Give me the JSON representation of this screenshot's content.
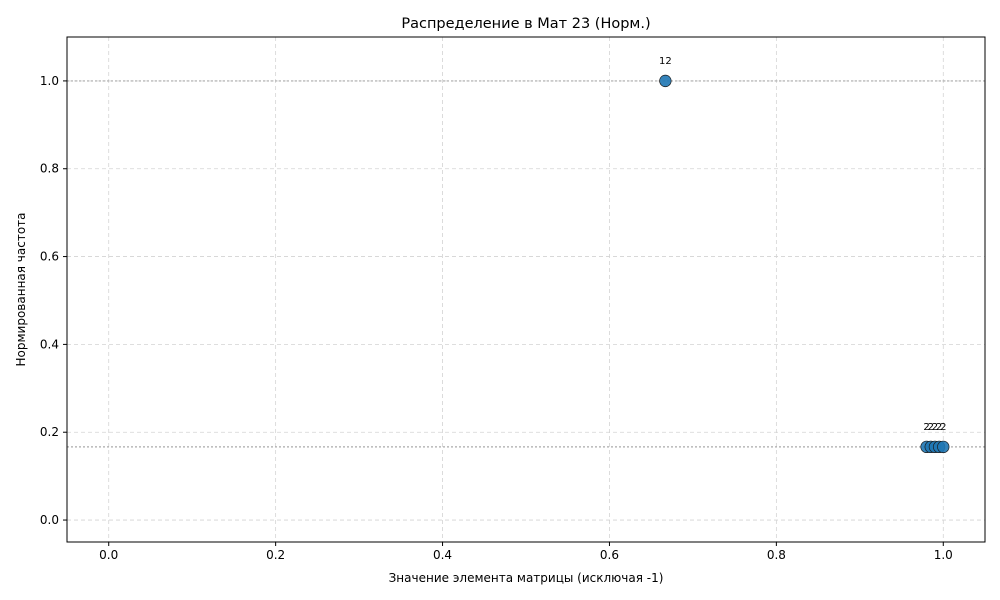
{
  "chart_data": {
    "type": "scatter",
    "title": "Распределение в Мат 23 (Норм.)",
    "xlabel": "Значение элемента матрицы (исключая -1)",
    "ylabel": "Нормированная частота",
    "xlim": [
      -0.05,
      1.05
    ],
    "ylim": [
      -0.05,
      1.1
    ],
    "xticks": [
      "0.0",
      "0.2",
      "0.4",
      "0.6",
      "0.8",
      "1.0"
    ],
    "xtick_values": [
      0.0,
      0.2,
      0.4,
      0.6,
      0.8,
      1.0
    ],
    "yticks": [
      "0.0",
      "0.2",
      "0.4",
      "0.6",
      "0.8",
      "1.0"
    ],
    "ytick_values": [
      0.0,
      0.2,
      0.4,
      0.6,
      0.8,
      1.0
    ],
    "grid": true,
    "reference_lines_y": [
      1.0,
      0.1667
    ],
    "point_color": "#1f77b4",
    "points": [
      {
        "x": 0.667,
        "y": 1.0,
        "label": "12"
      },
      {
        "x": 0.98,
        "y": 0.1667,
        "label": "2"
      },
      {
        "x": 0.985,
        "y": 0.1667,
        "label": "2"
      },
      {
        "x": 0.99,
        "y": 0.1667,
        "label": "2"
      },
      {
        "x": 0.995,
        "y": 0.1667,
        "label": "2"
      },
      {
        "x": 1.0,
        "y": 0.1667,
        "label": "2"
      }
    ]
  }
}
